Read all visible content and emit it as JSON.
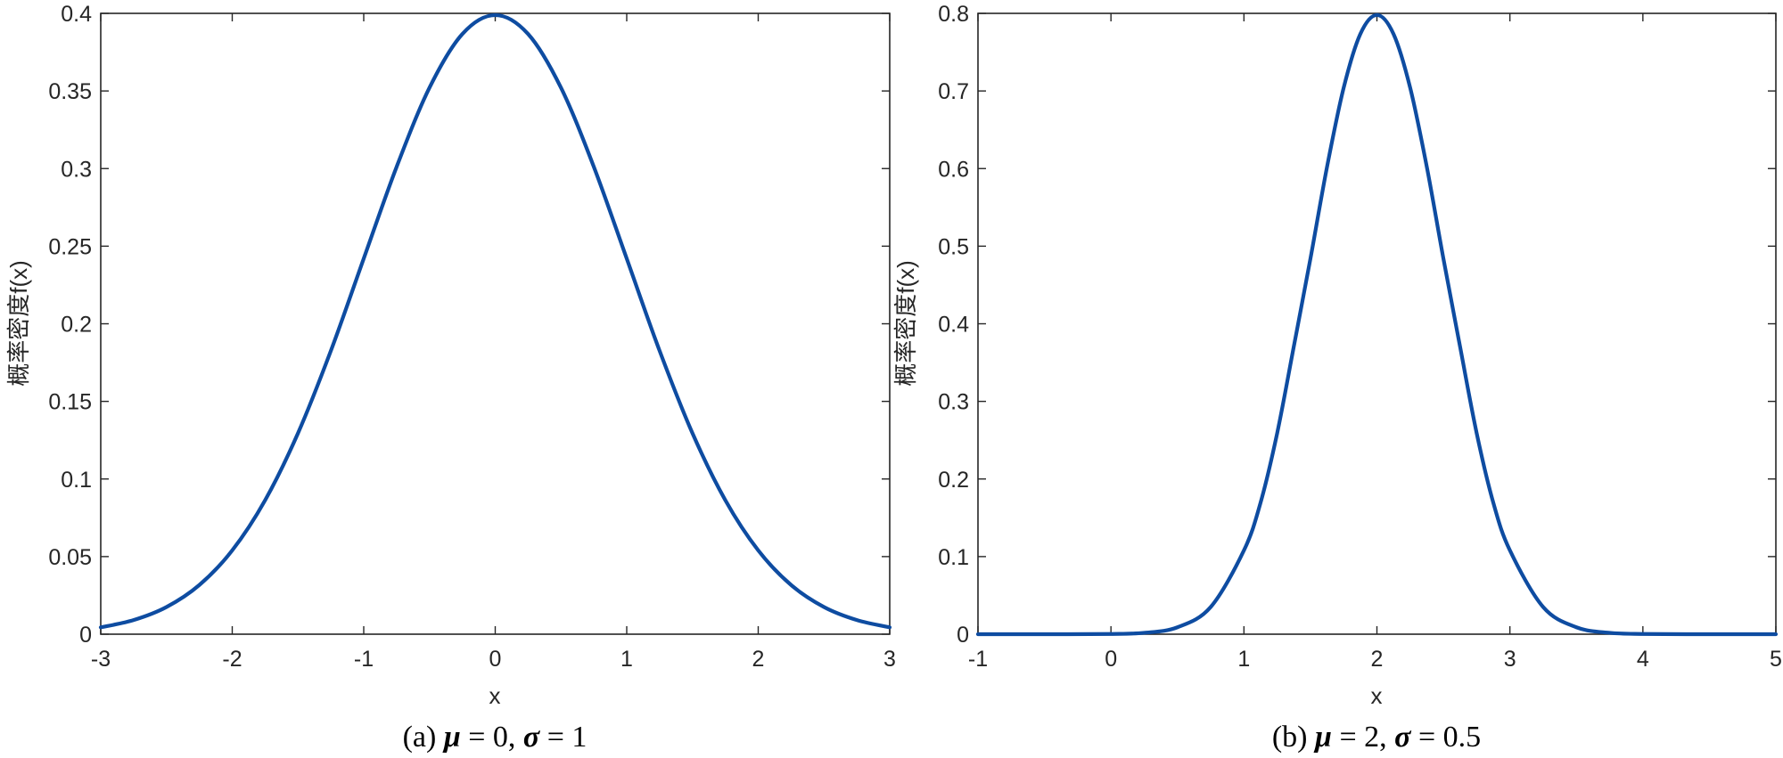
{
  "chart_data": [
    {
      "id": "a",
      "type": "line",
      "xlabel": "x",
      "ylabel": "概率密度f(x)",
      "xlim": [
        -3,
        3
      ],
      "ylim": [
        0,
        0.4
      ],
      "xticks": [
        -3,
        -2,
        -1,
        0,
        1,
        2,
        3
      ],
      "yticks": [
        0,
        0.05,
        0.1,
        0.15,
        0.2,
        0.25,
        0.3,
        0.35,
        0.4
      ],
      "grid": false,
      "legend": "none",
      "caption": {
        "prefix": "(a) ",
        "mu_symbol": "μ",
        "mu_value": " = 0, ",
        "sigma_symbol": "σ",
        "sigma_value": " = 1"
      },
      "series": [
        {
          "color": "#0e4ca1",
          "x": [
            -3.0,
            -2.75,
            -2.5,
            -2.25,
            -2.0,
            -1.75,
            -1.5,
            -1.25,
            -1.0,
            -0.75,
            -0.5,
            -0.25,
            0.0,
            0.25,
            0.5,
            0.75,
            1.0,
            1.25,
            1.5,
            1.75,
            2.0,
            2.25,
            2.5,
            2.75,
            3.0
          ],
          "y": [
            0.0044,
            0.0091,
            0.0175,
            0.0317,
            0.054,
            0.0863,
            0.1295,
            0.1826,
            0.242,
            0.3011,
            0.3521,
            0.3867,
            0.3989,
            0.3867,
            0.3521,
            0.3011,
            0.242,
            0.1826,
            0.1295,
            0.0863,
            0.054,
            0.0317,
            0.0175,
            0.0091,
            0.0044
          ]
        }
      ]
    },
    {
      "id": "b",
      "type": "line",
      "xlabel": "x",
      "ylabel": "概率密度f(x)",
      "xlim": [
        -1,
        5
      ],
      "ylim": [
        0,
        0.8
      ],
      "xticks": [
        -1,
        0,
        1,
        2,
        3,
        4,
        5
      ],
      "yticks": [
        0,
        0.1,
        0.2,
        0.3,
        0.4,
        0.5,
        0.6,
        0.7,
        0.8
      ],
      "grid": false,
      "legend": "none",
      "caption": {
        "prefix": "(b) ",
        "mu_symbol": "μ",
        "mu_value": " = 2, ",
        "sigma_symbol": "σ",
        "sigma_value": " = 0.5"
      },
      "series": [
        {
          "color": "#0e4ca1",
          "x": [
            -1.0,
            -0.5,
            0.0,
            0.25,
            0.5,
            0.75,
            1.0,
            1.125,
            1.25,
            1.375,
            1.5,
            1.625,
            1.75,
            1.875,
            2.0,
            2.125,
            2.25,
            2.375,
            2.5,
            2.625,
            2.75,
            2.875,
            3.0,
            3.25,
            3.5,
            3.75,
            4.0,
            4.5,
            5.0
          ],
          "y": [
            0.0,
            0.0,
            0.0003,
            0.0018,
            0.0089,
            0.035,
            0.108,
            0.1695,
            0.2591,
            0.3707,
            0.4839,
            0.6023,
            0.7041,
            0.7733,
            0.7979,
            0.7733,
            0.7041,
            0.6023,
            0.4839,
            0.3707,
            0.2591,
            0.1695,
            0.108,
            0.035,
            0.0089,
            0.0018,
            0.0003,
            0.0,
            0.0
          ]
        }
      ]
    }
  ]
}
